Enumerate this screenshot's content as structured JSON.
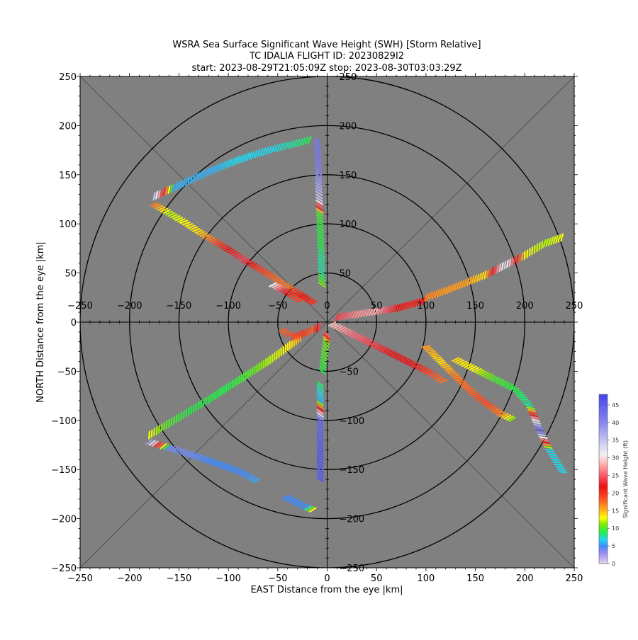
{
  "chart_data": {
    "type": "scatter",
    "subtype": "polar-storm-relative-vector-track",
    "title_lines": [
      "WSRA Sea Surface Significant Wave Height (SWH) [Storm Relative]",
      "TC IDALIA FLIGHT ID: 20230829I2",
      "start: 2023-08-29T21:05:09Z    stop: 2023-08-30T03:03:29Z"
    ],
    "xlabel": "EAST Distance from the eye |km|",
    "ylabel": "NORTH Distance from the eye |km|",
    "xlim": [
      -250,
      250
    ],
    "ylim": [
      -250,
      250
    ],
    "x_ticks": [
      -250,
      -200,
      -150,
      -100,
      -50,
      0,
      50,
      100,
      150,
      200,
      250
    ],
    "y_ticks": [
      -250,
      -200,
      -150,
      -100,
      -50,
      0,
      50,
      100,
      150,
      200,
      250
    ],
    "inner_x_ticks": [
      -250,
      -200,
      -150,
      -100,
      -50,
      0,
      50,
      100,
      150,
      200,
      250
    ],
    "inner_y_ticks": [
      50,
      100,
      150,
      200,
      250,
      -50,
      -100,
      -150,
      -200,
      -250
    ],
    "range_rings_km": [
      50,
      100,
      150,
      200,
      250
    ],
    "grid": false,
    "background_color": "#808080",
    "colorbar": {
      "label": "Significant Wave Height (ft)",
      "min": 0,
      "max": 48,
      "ticks": [
        0,
        5,
        10,
        15,
        20,
        25,
        30,
        35,
        40,
        45
      ],
      "colors": [
        {
          "v": 0,
          "c": "#e6d6f2"
        },
        {
          "v": 3,
          "c": "#9e8cf0"
        },
        {
          "v": 5,
          "c": "#3f8bff"
        },
        {
          "v": 7,
          "c": "#1fd8f0"
        },
        {
          "v": 9,
          "c": "#22ee44"
        },
        {
          "v": 11.5,
          "c": "#88ee00"
        },
        {
          "v": 13,
          "c": "#ffff00"
        },
        {
          "v": 16,
          "c": "#ff9a1a"
        },
        {
          "v": 19,
          "c": "#ff4422"
        },
        {
          "v": 22,
          "c": "#ee1111"
        },
        {
          "v": 25,
          "c": "#ff5566"
        },
        {
          "v": 28,
          "c": "#ffaaaa"
        },
        {
          "v": 31,
          "c": "#f5f0f5"
        },
        {
          "v": 35,
          "c": "#c4c4f0"
        },
        {
          "v": 40,
          "c": "#8888f0"
        },
        {
          "v": 48,
          "c": "#4444ee"
        }
      ]
    },
    "legend": "none",
    "tracks": [
      {
        "x": [
          -10,
          -9.5,
          -9,
          -8.5,
          -8,
          -7.5,
          -7,
          -6.5,
          -6,
          -5.5,
          -5
        ],
        "y": [
          185,
          170,
          155,
          140,
          125,
          110,
          95,
          80,
          65,
          50,
          35
        ],
        "swh": [
          42,
          42,
          41,
          38,
          35,
          10,
          9,
          9,
          8,
          8,
          12
        ]
      },
      {
        "x": [
          -175,
          -160,
          -145,
          -130,
          -115,
          -100,
          -85,
          -70,
          -55,
          -40,
          -25,
          -12
        ],
        "y": [
          120,
          111,
          102,
          92,
          83,
          74,
          64,
          55,
          46,
          36,
          27,
          18
        ],
        "swh": [
          17,
          12,
          13,
          14,
          18,
          22,
          24,
          20,
          18,
          17,
          22,
          20
        ]
      },
      {
        "x": [
          -175,
          -155,
          -135,
          -115,
          -95,
          -75,
          -55,
          -35,
          -15
        ],
        "y": [
          128,
          137,
          146,
          155,
          163,
          170,
          176,
          181,
          186
        ],
        "swh": [
          35,
          6,
          6,
          6,
          7,
          7,
          7,
          8,
          9
        ]
      },
      {
        "x": [
          -180,
          -160,
          -140,
          -120,
          -100,
          -80,
          -60,
          -42,
          -25
        ],
        "y": [
          -115,
          -103,
          -91,
          -79,
          -66,
          -53,
          -40,
          -27,
          -14
        ],
        "swh": [
          13,
          10,
          9,
          9,
          9,
          10,
          12,
          13,
          16
        ]
      },
      {
        "x": [
          -180,
          -160,
          -140,
          -120,
          -100,
          -82,
          -70
        ],
        "y": [
          -122,
          -128,
          -134,
          -141,
          -148,
          -155,
          -163
        ],
        "swh": [
          38,
          4,
          4,
          5,
          5,
          5,
          6
        ]
      },
      {
        "x": [
          -42,
          -32,
          -22,
          -12
        ],
        "y": [
          -178,
          -183,
          -188,
          -192
        ],
        "swh": [
          5,
          5,
          5,
          16
        ]
      },
      {
        "x": [
          -7,
          -7,
          -7,
          -7,
          -7,
          -7,
          -7
        ],
        "y": [
          -160,
          -145,
          -130,
          -115,
          -100,
          -80,
          -60
        ],
        "swh": [
          46,
          46,
          46,
          45,
          44,
          6,
          9
        ]
      },
      {
        "x": [
          10,
          30,
          50,
          70,
          85,
          100
        ],
        "y": [
          5,
          8,
          11,
          14,
          18,
          22
        ],
        "swh": [
          24,
          27,
          28,
          22,
          21,
          22
        ]
      },
      {
        "x": [
          100,
          120,
          140,
          160,
          180,
          200,
          220,
          240
        ],
        "y": [
          25,
          32,
          40,
          48,
          58,
          68,
          80,
          87
        ],
        "swh": [
          17,
          16,
          16,
          14,
          34,
          13,
          12,
          13
        ]
      },
      {
        "x": [
          5,
          25,
          45,
          65,
          85,
          105,
          120
        ],
        "y": [
          -2,
          -12,
          -22,
          -32,
          -42,
          -52,
          -62
        ],
        "swh": [
          29,
          26,
          24,
          22,
          22,
          19,
          17
        ]
      },
      {
        "x": [
          100,
          115,
          130,
          145,
          160,
          175,
          190
        ],
        "y": [
          -25,
          -40,
          -55,
          -70,
          -82,
          -93,
          -100
        ],
        "swh": [
          16,
          14,
          17,
          18,
          19,
          17,
          10
        ]
      },
      {
        "x": [
          130,
          150,
          170,
          190,
          205,
          215,
          225,
          240
        ],
        "y": [
          -38,
          -48,
          -58,
          -68,
          -85,
          -110,
          -130,
          -155
        ],
        "swh": [
          14,
          13,
          10,
          9,
          8,
          45,
          7,
          7
        ]
      },
      {
        "x": [
          -45,
          -35,
          -25,
          -15,
          -5
        ],
        "y": [
          -8,
          -15,
          -12,
          -8,
          -3
        ],
        "swh": [
          18,
          19,
          20,
          18,
          26
        ]
      },
      {
        "x": [
          -5,
          -3,
          -1,
          0
        ],
        "y": [
          -50,
          -35,
          -20,
          -10
        ],
        "swh": [
          9,
          10,
          11,
          30
        ]
      },
      {
        "x": [
          -55,
          -45,
          -35,
          -25
        ],
        "y": [
          38,
          33,
          27,
          20
        ],
        "swh": [
          31,
          24,
          20,
          19
        ]
      }
    ]
  }
}
